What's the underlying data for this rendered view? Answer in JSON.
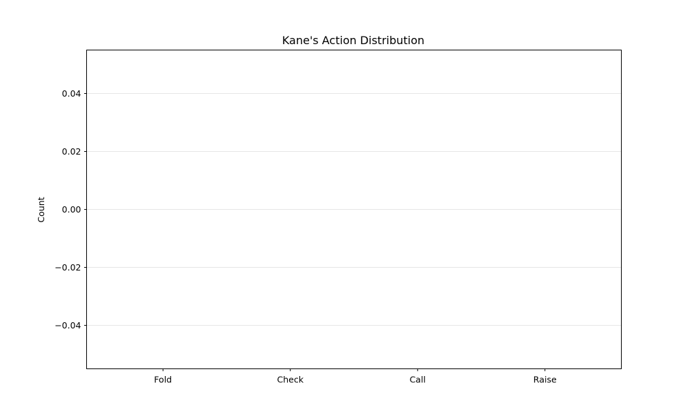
{
  "chart_data": {
    "type": "bar",
    "title": "Kane's Action Distribution",
    "xlabel": "",
    "ylabel": "Count",
    "categories": [
      "Fold",
      "Check",
      "Call",
      "Raise"
    ],
    "values": [
      0,
      0,
      0,
      0
    ],
    "ylim": [
      -0.055,
      0.055
    ],
    "yticks": [
      -0.04,
      -0.02,
      0.0,
      0.02,
      0.04
    ],
    "ytick_labels": [
      "−0.04",
      "−0.02",
      "0.00",
      "0.02",
      "0.04"
    ],
    "grid": "y",
    "legend": "none",
    "colors": {
      "grid": "#e6e6e6",
      "axes": "#000000",
      "bar": "#1f77b4"
    }
  }
}
